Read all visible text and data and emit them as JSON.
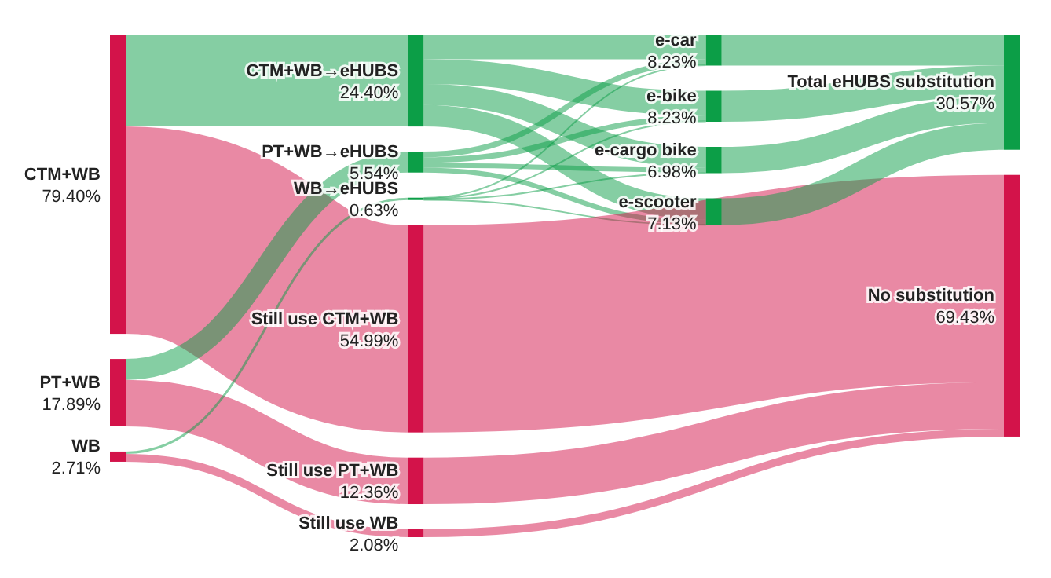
{
  "chart_data": {
    "type": "other",
    "categories": [
      "CTM+WB",
      "PT+WB",
      "WB",
      "CTM+WB→eHUBS",
      "PT+WB→eHUBS",
      "WB→eHUBS",
      "Still use CTM+WB",
      "Still use PT+WB",
      "Still use WB",
      "e-car",
      "e-bike",
      "e-cargo bike",
      "e-scooter",
      "Total eHUBS substitution",
      "No substitution"
    ],
    "values": [
      79.4,
      17.89,
      2.71,
      24.4,
      5.54,
      0.63,
      54.99,
      12.36,
      2.08,
      8.23,
      8.23,
      6.98,
      7.13,
      30.57,
      69.43
    ],
    "value_labels": [
      "79.40%",
      "17.89%",
      "2.71%",
      "24.40%",
      "5.54%",
      "0.63%",
      "54.99%",
      "12.36%",
      "2.08%",
      "8.23%",
      "8.23%",
      "6.98%",
      "7.13%",
      "30.57%",
      "69.43%"
    ],
    "colors": [
      "#d3134a",
      "#d3134a",
      "#d3134a",
      "#0c9e47",
      "#0c9e47",
      "#0c9e47",
      "#d3134a",
      "#d3134a",
      "#d3134a",
      "#0c9e47",
      "#0c9e47",
      "#0c9e47",
      "#0c9e47",
      "#0c9e47",
      "#d3134a"
    ],
    "cells": [
      [
        false,
        false,
        false,
        true,
        false,
        false,
        true,
        false,
        false,
        false,
        false,
        false,
        false,
        false,
        false
      ],
      [
        false,
        false,
        false,
        false,
        true,
        false,
        false,
        true,
        false,
        false,
        false,
        false,
        false,
        false,
        false
      ],
      [
        false,
        false,
        false,
        false,
        false,
        true,
        false,
        false,
        true,
        false,
        false,
        false,
        false,
        false,
        false
      ],
      [
        false,
        false,
        false,
        false,
        false,
        false,
        false,
        false,
        false,
        true,
        true,
        true,
        true,
        false,
        false
      ],
      [
        false,
        false,
        false,
        false,
        false,
        false,
        false,
        false,
        false,
        true,
        true,
        true,
        true,
        false,
        false
      ],
      [
        false,
        false,
        false,
        false,
        false,
        false,
        false,
        false,
        false,
        true,
        true,
        true,
        true,
        false,
        false
      ],
      [
        false,
        false,
        false,
        false,
        false,
        false,
        false,
        false,
        false,
        false,
        false,
        false,
        false,
        false,
        true
      ],
      [
        false,
        false,
        false,
        false,
        false,
        false,
        false,
        false,
        false,
        false,
        false,
        false,
        false,
        false,
        true
      ],
      [
        false,
        false,
        false,
        false,
        false,
        false,
        false,
        false,
        false,
        false,
        false,
        false,
        false,
        false,
        true
      ],
      [
        false,
        false,
        false,
        false,
        false,
        false,
        false,
        false,
        false,
        false,
        false,
        false,
        false,
        true,
        false
      ],
      [
        false,
        false,
        false,
        false,
        false,
        false,
        false,
        false,
        false,
        false,
        false,
        false,
        false,
        true,
        false
      ],
      [
        false,
        false,
        false,
        false,
        false,
        false,
        false,
        false,
        false,
        false,
        false,
        false,
        false,
        true,
        false
      ],
      [
        false,
        false,
        false,
        false,
        false,
        false,
        false,
        false,
        false,
        false,
        false,
        false,
        false,
        true,
        false
      ],
      [
        false,
        false,
        false,
        false,
        false,
        false,
        false,
        false,
        false,
        false,
        false,
        false,
        false,
        false,
        false
      ],
      [
        false,
        false,
        false,
        false,
        false,
        false,
        false,
        false,
        false,
        false,
        false,
        false,
        false,
        false,
        false
      ]
    ]
  }
}
